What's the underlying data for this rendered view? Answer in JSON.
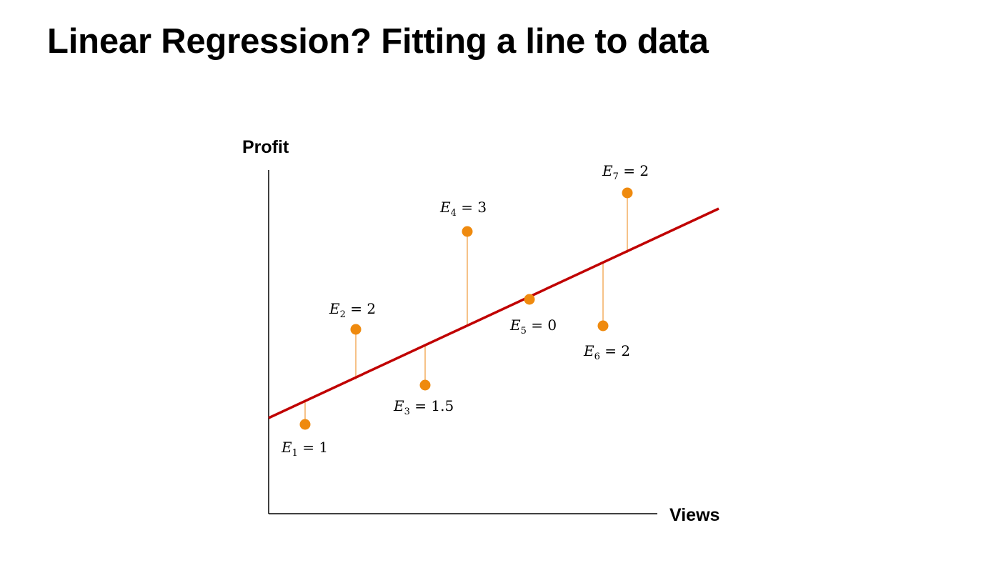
{
  "slide": {
    "title": "Linear Regression? Fitting a line to data"
  },
  "colors": {
    "axis": "#000000",
    "fit_line": "#c00000",
    "points": "#ef8a0e",
    "residuals": "#f4b36a"
  },
  "diagram": {
    "y_axis_label": "Profit",
    "x_axis_label": "Views",
    "errors": [
      {
        "letter": "E",
        "index": "1",
        "eq": " = 1"
      },
      {
        "letter": "E",
        "index": "2",
        "eq": " = 2"
      },
      {
        "letter": "E",
        "index": "3",
        "eq": " = 1.5"
      },
      {
        "letter": "E",
        "index": "4",
        "eq": " = 3"
      },
      {
        "letter": "E",
        "index": "5",
        "eq": " = 0"
      },
      {
        "letter": "E",
        "index": "6",
        "eq": " = 2"
      },
      {
        "letter": "E",
        "index": "7",
        "eq": " = 2"
      }
    ]
  }
}
